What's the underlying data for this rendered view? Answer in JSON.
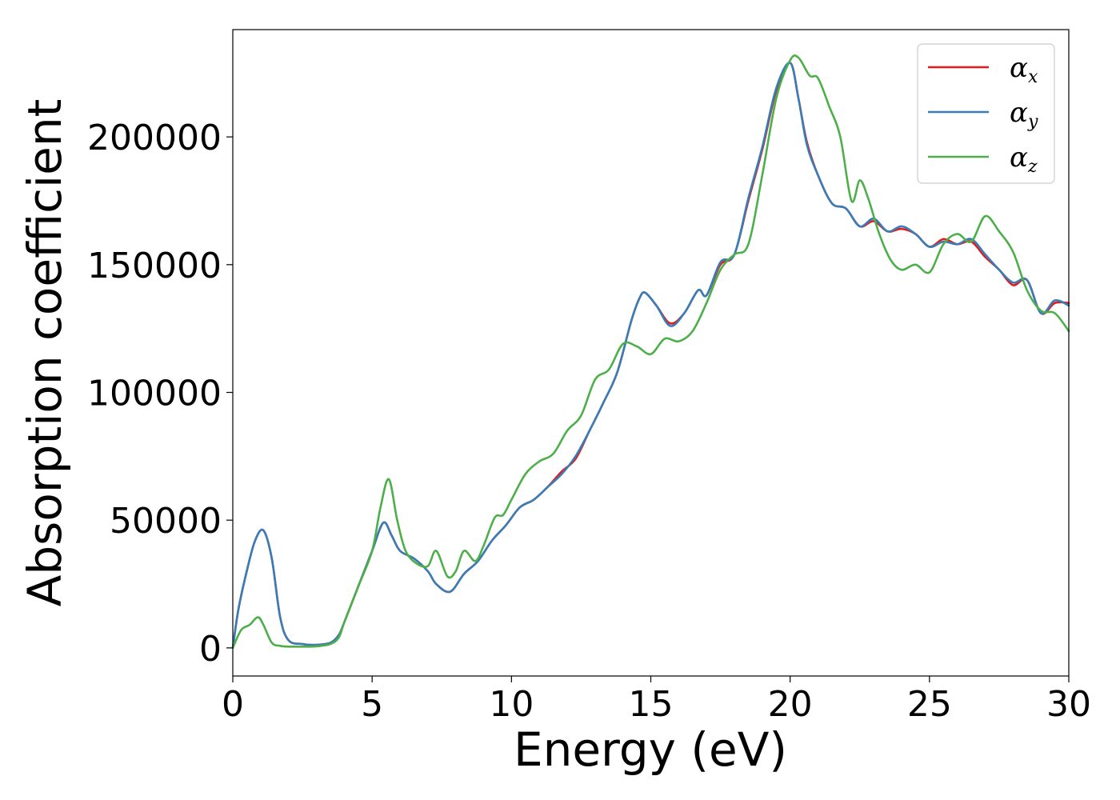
{
  "chart_data": {
    "type": "line",
    "title": "",
    "xlabel": "Energy (eV)",
    "ylabel": "Absorption coefficient",
    "xlim": [
      0,
      30
    ],
    "ylim": [
      -11000,
      242000
    ],
    "xticks": [
      0,
      5,
      10,
      15,
      20,
      25,
      30
    ],
    "yticks": [
      0,
      50000,
      100000,
      150000,
      200000
    ],
    "grid": false,
    "legend_position": "top-right",
    "series": [
      {
        "name": "α_x",
        "symbol": "α",
        "subscript": "x",
        "color": "#e41a1c",
        "x": [
          0,
          0.2,
          0.5,
          0.8,
          1.1,
          1.4,
          1.7,
          2.0,
          2.5,
          3.0,
          3.5,
          3.8,
          4.0,
          4.5,
          5.0,
          5.4,
          5.7,
          6.0,
          6.5,
          7.0,
          7.3,
          7.8,
          8.3,
          8.8,
          9.3,
          9.8,
          10.3,
          10.8,
          11.3,
          11.8,
          12.3,
          12.8,
          13.3,
          13.8,
          14.3,
          14.6,
          14.8,
          15.2,
          15.7,
          16.2,
          16.7,
          17.0,
          17.5,
          18.0,
          18.5,
          19.0,
          19.5,
          20.0,
          20.3,
          20.6,
          21.0,
          21.5,
          22.0,
          22.5,
          23.0,
          23.5,
          24.0,
          24.5,
          25.0,
          25.5,
          26.0,
          26.5,
          27.0,
          27.5,
          28.0,
          28.5,
          29.0,
          29.5,
          30.0
        ],
        "y": [
          0,
          15000,
          30000,
          42000,
          46000,
          35000,
          12000,
          3000,
          1500,
          1200,
          2000,
          5000,
          10000,
          24000,
          38000,
          49000,
          44000,
          38000,
          35000,
          30000,
          25000,
          22000,
          29000,
          34000,
          42000,
          48000,
          55000,
          58000,
          63000,
          69000,
          74000,
          85000,
          96000,
          108000,
          128000,
          137000,
          139000,
          134000,
          127000,
          131000,
          140000,
          138000,
          150000,
          154000,
          175000,
          195000,
          218000,
          229000,
          215000,
          198000,
          185000,
          174000,
          172000,
          165000,
          167000,
          163000,
          164000,
          162000,
          157000,
          160000,
          158000,
          159000,
          153000,
          148000,
          142000,
          144000,
          131000,
          135000,
          135000
        ]
      },
      {
        "name": "α_y",
        "symbol": "α",
        "subscript": "y",
        "color": "#377eb8",
        "x": [
          0,
          0.2,
          0.5,
          0.8,
          1.1,
          1.4,
          1.7,
          2.0,
          2.5,
          3.0,
          3.5,
          3.8,
          4.0,
          4.5,
          5.0,
          5.4,
          5.7,
          6.0,
          6.5,
          7.0,
          7.3,
          7.8,
          8.3,
          8.8,
          9.3,
          9.8,
          10.3,
          10.8,
          11.3,
          11.8,
          12.3,
          12.8,
          13.3,
          13.8,
          14.3,
          14.6,
          14.8,
          15.2,
          15.7,
          16.2,
          16.7,
          17.0,
          17.5,
          18.0,
          18.5,
          19.0,
          19.5,
          20.0,
          20.3,
          20.6,
          21.0,
          21.5,
          22.0,
          22.5,
          23.0,
          23.5,
          24.0,
          24.5,
          25.0,
          25.5,
          26.0,
          26.5,
          27.0,
          27.5,
          28.0,
          28.5,
          29.0,
          29.5,
          30.0
        ],
        "y": [
          0,
          15000,
          30000,
          42000,
          46000,
          35000,
          12000,
          3000,
          1500,
          1200,
          2000,
          5000,
          10000,
          24000,
          38000,
          49000,
          44000,
          38000,
          35000,
          30000,
          25000,
          22000,
          29000,
          34000,
          42000,
          48000,
          55000,
          58000,
          63000,
          68000,
          75000,
          85000,
          96000,
          108000,
          128000,
          137000,
          139000,
          134000,
          126000,
          131000,
          140000,
          138000,
          151000,
          154000,
          176000,
          196000,
          219000,
          229000,
          215000,
          197000,
          185000,
          174000,
          172000,
          165000,
          168000,
          163000,
          165000,
          162000,
          157000,
          159000,
          158000,
          160000,
          154000,
          148000,
          143000,
          144000,
          131000,
          136000,
          134000
        ]
      },
      {
        "name": "α_z",
        "symbol": "α",
        "subscript": "z",
        "color": "#4daf4a",
        "x": [
          0,
          0.3,
          0.6,
          0.9,
          1.1,
          1.4,
          1.7,
          2.0,
          2.5,
          3.0,
          3.5,
          3.8,
          4.0,
          4.5,
          5.0,
          5.3,
          5.6,
          5.9,
          6.2,
          6.6,
          7.0,
          7.3,
          7.7,
          8.0,
          8.3,
          8.7,
          9.0,
          9.4,
          9.7,
          10.0,
          10.5,
          11.0,
          11.5,
          12.0,
          12.5,
          13.0,
          13.5,
          14.0,
          14.5,
          15.0,
          15.5,
          16.0,
          16.5,
          17.0,
          17.5,
          18.0,
          18.5,
          19.0,
          19.5,
          20.0,
          20.3,
          20.7,
          21.0,
          21.4,
          21.8,
          22.2,
          22.5,
          22.8,
          23.2,
          23.6,
          24.0,
          24.5,
          25.0,
          25.5,
          26.0,
          26.5,
          27.0,
          27.5,
          28.0,
          28.5,
          29.0,
          29.5,
          30.0
        ],
        "y": [
          0,
          7000,
          9000,
          12000,
          9000,
          2000,
          800,
          500,
          500,
          600,
          1500,
          4000,
          10000,
          24000,
          38000,
          55000,
          66000,
          50000,
          38000,
          33000,
          32000,
          38000,
          28000,
          30000,
          38000,
          34000,
          40000,
          51000,
          52000,
          58000,
          68000,
          73000,
          76000,
          85000,
          91000,
          105000,
          109000,
          119000,
          118000,
          115000,
          121000,
          120000,
          124000,
          135000,
          148000,
          154000,
          158000,
          185000,
          215000,
          230000,
          231000,
          224000,
          223000,
          212000,
          200000,
          175000,
          183000,
          176000,
          162000,
          152000,
          148000,
          150000,
          147000,
          158000,
          162000,
          159000,
          169000,
          163000,
          155000,
          140000,
          132000,
          131000,
          124000
        ]
      }
    ]
  }
}
